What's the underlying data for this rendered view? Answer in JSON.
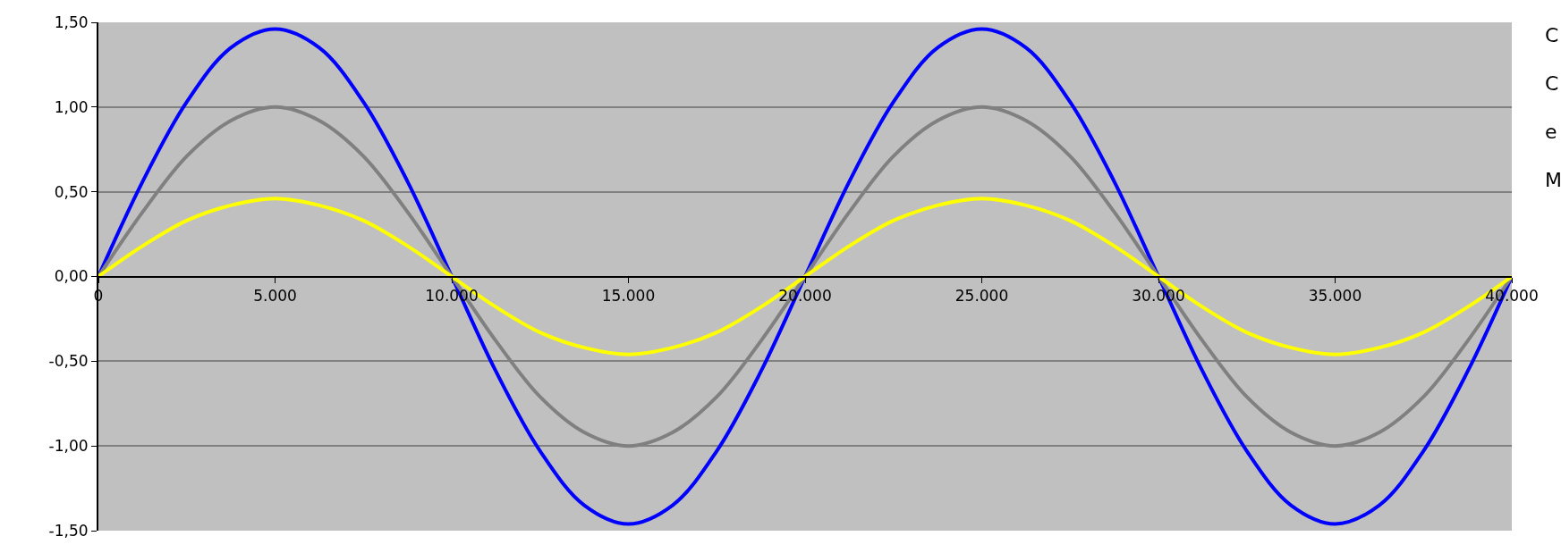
{
  "chart_data": {
    "type": "line",
    "x": [
      0,
      1250,
      2500,
      3750,
      5000,
      6250,
      7500,
      8750,
      10000,
      11250,
      12500,
      13750,
      15000,
      16250,
      17500,
      18750,
      20000,
      21250,
      22500,
      23750,
      25000,
      26250,
      27500,
      28750,
      30000,
      31250,
      32500,
      33750,
      35000,
      36250,
      37500,
      38750,
      40000
    ],
    "series": [
      {
        "color": "#0000ff",
        "values": [
          0,
          0.56,
          1.03,
          1.35,
          1.46,
          1.35,
          1.03,
          0.56,
          0,
          -0.56,
          -1.03,
          -1.35,
          -1.46,
          -1.35,
          -1.03,
          -0.56,
          0,
          0.56,
          1.03,
          1.35,
          1.46,
          1.35,
          1.03,
          0.56,
          0,
          -0.56,
          -1.03,
          -1.35,
          -1.46,
          -1.35,
          -1.03,
          -0.56,
          0
        ]
      },
      {
        "color": "#808080",
        "values": [
          0,
          0.38,
          0.71,
          0.92,
          1.0,
          0.92,
          0.71,
          0.38,
          0,
          -0.38,
          -0.71,
          -0.92,
          -1.0,
          -0.92,
          -0.71,
          -0.38,
          0,
          0.38,
          0.71,
          0.92,
          1.0,
          0.92,
          0.71,
          0.38,
          0,
          -0.38,
          -0.71,
          -0.92,
          -1.0,
          -0.92,
          -0.71,
          -0.38,
          0
        ]
      },
      {
        "color": "#ffff00",
        "values": [
          0,
          0.18,
          0.33,
          0.42,
          0.46,
          0.42,
          0.33,
          0.18,
          0,
          -0.18,
          -0.33,
          -0.42,
          -0.46,
          -0.42,
          -0.33,
          -0.18,
          0,
          0.18,
          0.33,
          0.42,
          0.46,
          0.42,
          0.33,
          0.18,
          0,
          -0.18,
          -0.33,
          -0.42,
          -0.46,
          -0.42,
          -0.33,
          -0.18,
          0
        ]
      }
    ],
    "xlim": [
      0,
      40000
    ],
    "xticks": [
      0,
      {
        "value": 5000,
        "label": "5.000"
      },
      {
        "value": 10000,
        "label": "10.000"
      },
      {
        "value": 15000,
        "label": "15.000"
      },
      {
        "value": 20000,
        "label": "20.000"
      },
      {
        "value": 25000,
        "label": "25.000"
      },
      {
        "value": 30000,
        "label": "30.000"
      },
      {
        "value": 35000,
        "label": "35.000"
      },
      {
        "value": 40000,
        "label": "40.000"
      }
    ],
    "ylim": [
      -1.5,
      1.5
    ],
    "yticks": [
      {
        "value": -1.5,
        "label": "-1,50"
      },
      {
        "value": -1,
        "label": "-1,00"
      },
      {
        "value": -0.5,
        "label": "-0,50"
      },
      {
        "value": 0,
        "label": "0,00"
      },
      {
        "value": 0.5,
        "label": "0,50"
      },
      {
        "value": 1,
        "label": "1,00"
      },
      {
        "value": 1.5,
        "label": "1,50"
      }
    ],
    "grid": "y",
    "marker": "none",
    "line_style": "solid",
    "annotations": [
      "C",
      "C",
      "e",
      "M"
    ]
  }
}
